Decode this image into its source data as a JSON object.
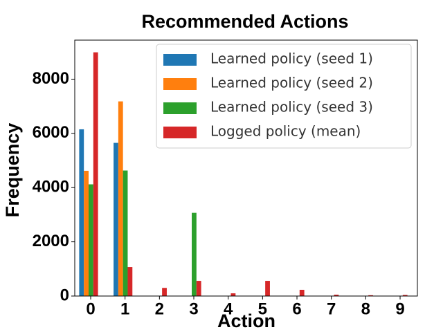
{
  "chart_data": {
    "type": "bar",
    "title": "Recommended Actions",
    "x_label": "Action",
    "y_label": "Frequency",
    "categories": [
      "0",
      "1",
      "2",
      "3",
      "4",
      "5",
      "6",
      "7",
      "8",
      "9"
    ],
    "series": [
      {
        "name": "Learned policy (seed 1)",
        "color": "#1f77b4",
        "values": [
          6150,
          5650,
          0,
          0,
          0,
          0,
          0,
          0,
          0,
          0
        ]
      },
      {
        "name": "Learned policy (seed 2)",
        "color": "#ff7f0e",
        "values": [
          4620,
          7180,
          0,
          0,
          0,
          0,
          0,
          0,
          0,
          0
        ]
      },
      {
        "name": "Learned policy (seed 3)",
        "color": "#2ca02c",
        "values": [
          4120,
          4630,
          0,
          3070,
          0,
          0,
          0,
          0,
          0,
          0
        ]
      },
      {
        "name": "Logged policy (mean)",
        "color": "#d62728",
        "values": [
          8990,
          1070,
          300,
          560,
          100,
          560,
          230,
          50,
          30,
          40
        ]
      }
    ],
    "ylim": [
      0,
      9440
    ],
    "yticks": [
      0,
      2000,
      4000,
      6000,
      8000
    ],
    "legend": "upper right"
  }
}
